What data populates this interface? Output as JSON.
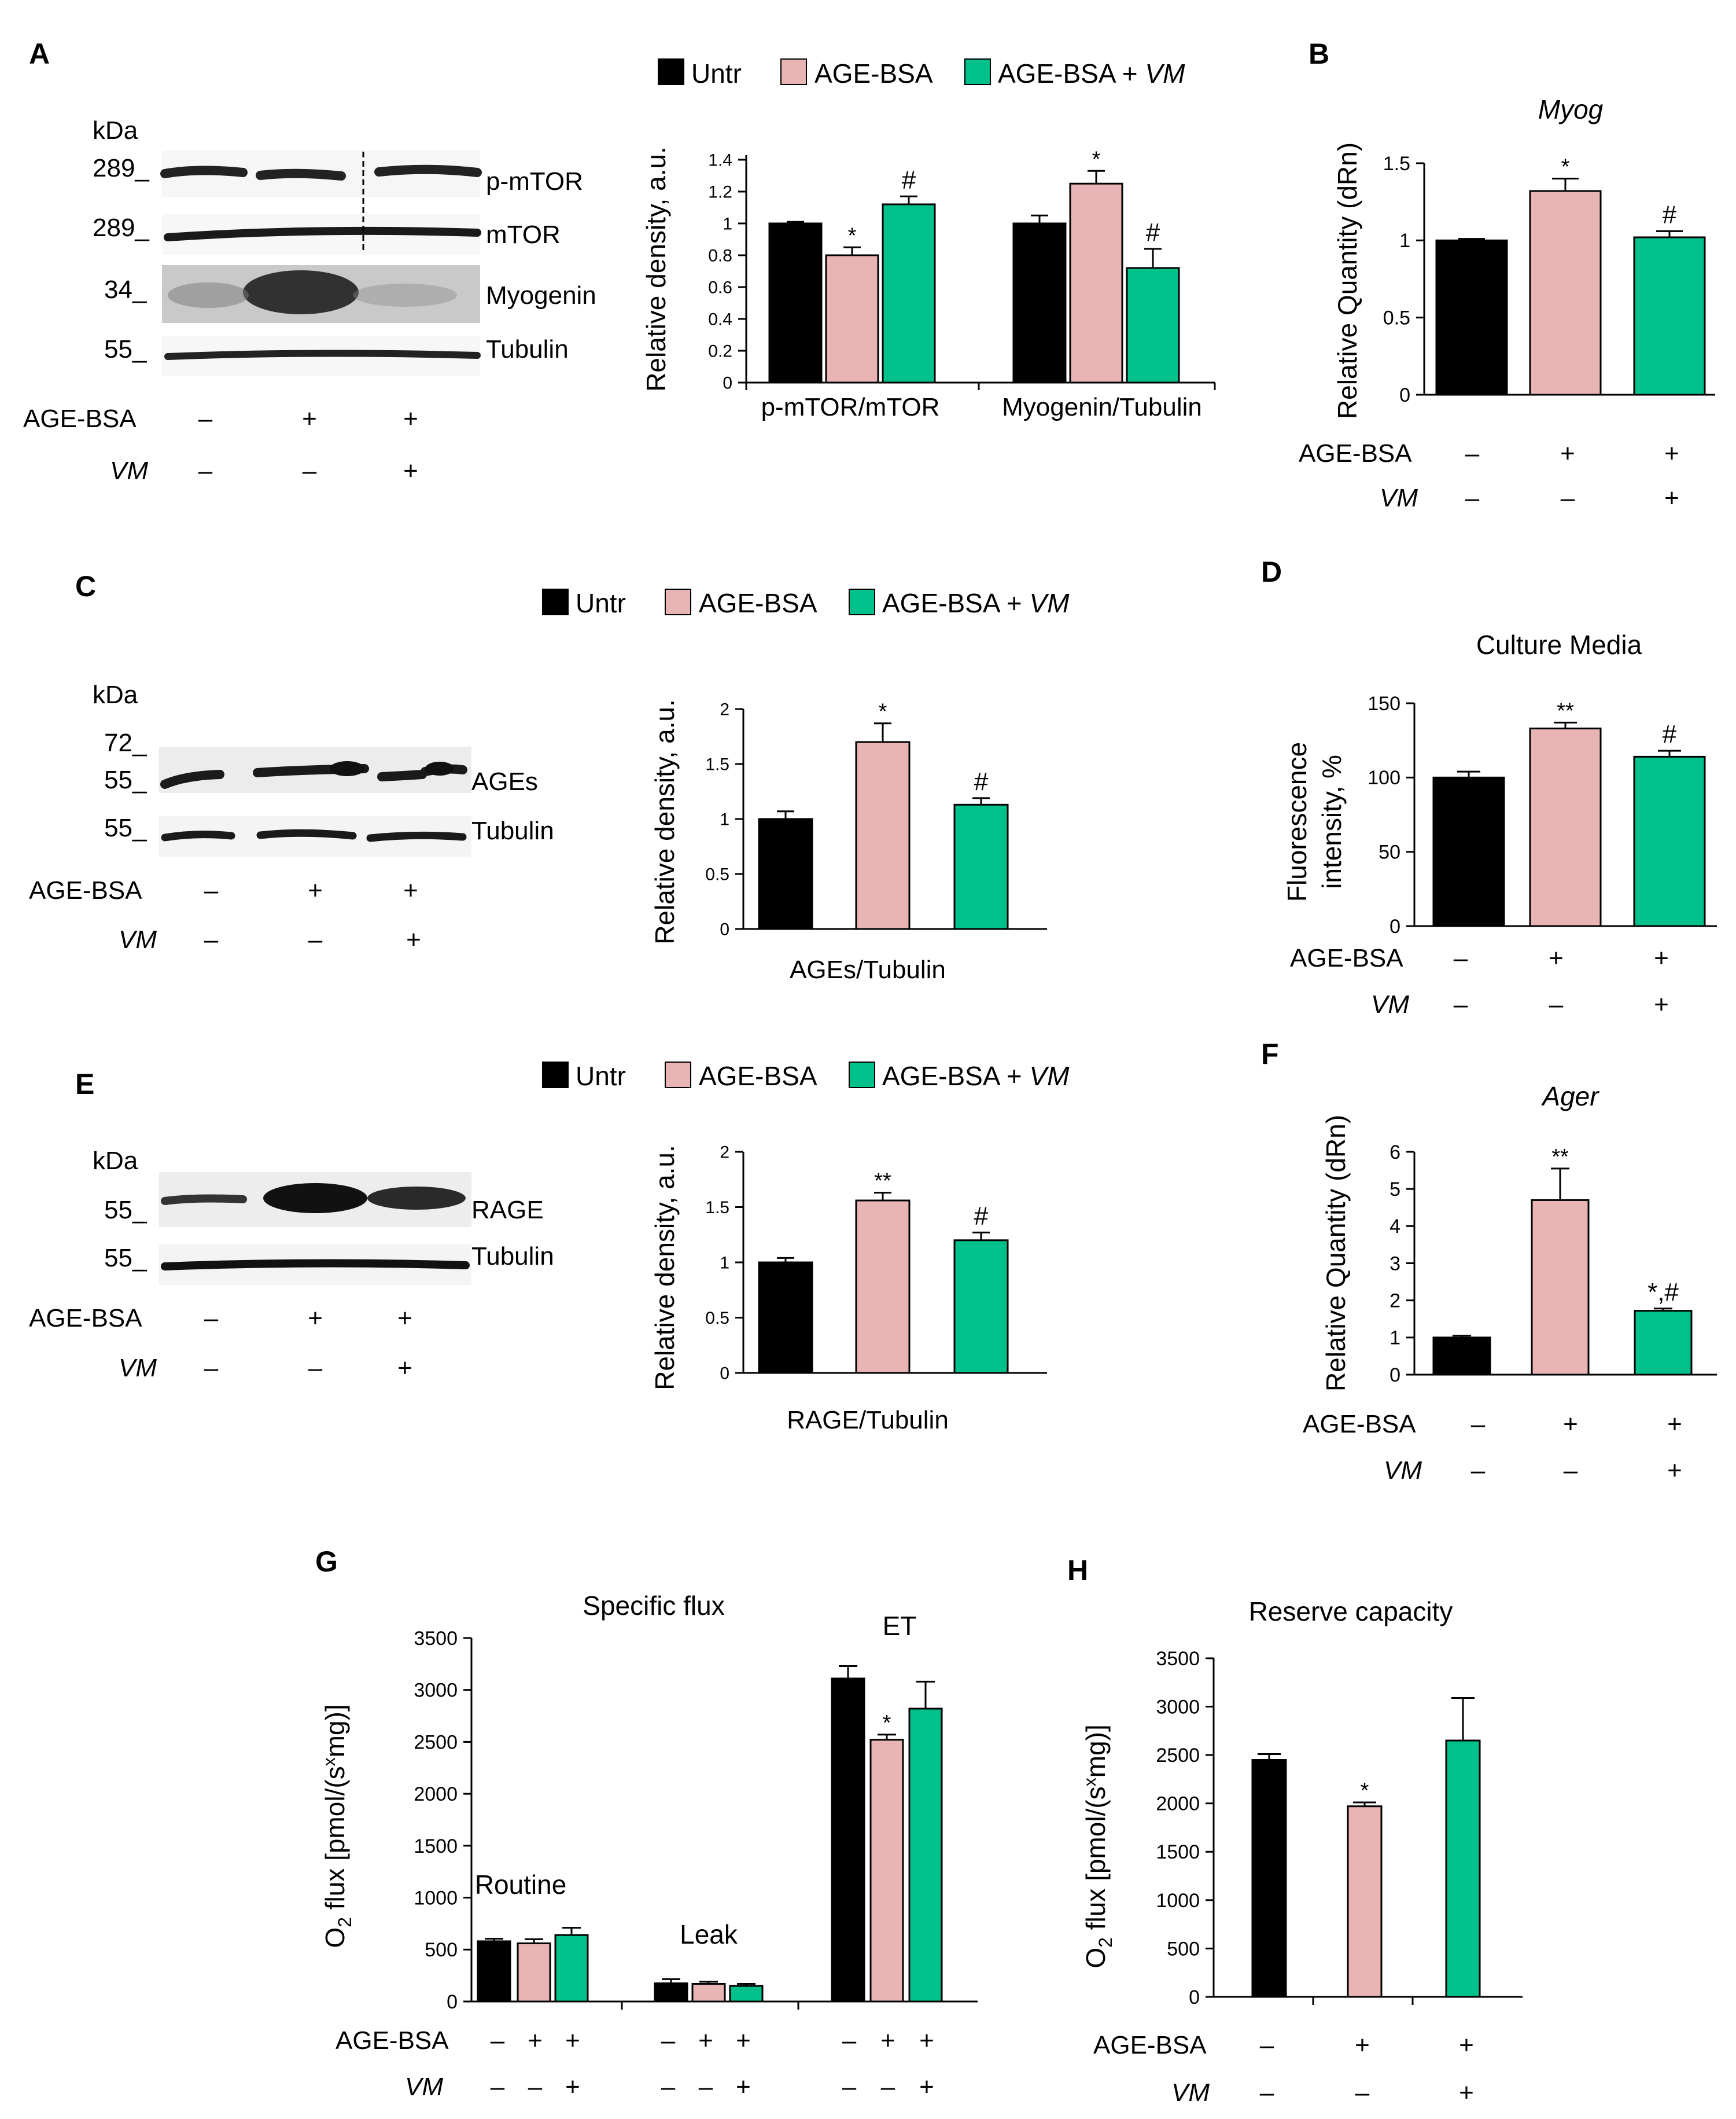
{
  "colors": {
    "untr": "#000000",
    "age": "#E8B4B4",
    "vm": "#00C08B"
  },
  "legend": {
    "items": [
      "Untr",
      "AGE-BSA",
      "AGE-BSA + ",
      "VM"
    ]
  },
  "treat": {
    "age": "AGE-BSA",
    "vm": "VM",
    "minus": "–",
    "plus": "+"
  },
  "panels": {
    "A": {
      "letter": "A",
      "blot": {
        "kda": "kDa",
        "markers": [
          "289_",
          "289_",
          "34_",
          "55_"
        ],
        "proteins": [
          "p-mTOR",
          "mTOR",
          "Myogenin",
          "Tubulin"
        ]
      },
      "age_row": [
        "–",
        "+",
        "+"
      ],
      "vm_row": [
        "–",
        "–",
        "+"
      ]
    },
    "B": {
      "letter": "B",
      "age_row": [
        "–",
        "+",
        "+"
      ],
      "vm_row": [
        "–",
        "–",
        "+"
      ]
    },
    "C": {
      "letter": "C",
      "blot": {
        "kda": "kDa",
        "markers": [
          "72_",
          "55_",
          "55_"
        ],
        "proteins": [
          "AGEs",
          "Tubulin"
        ]
      },
      "age_row": [
        "–",
        "+",
        "+"
      ],
      "vm_row": [
        "–",
        "–",
        "+"
      ]
    },
    "D": {
      "letter": "D",
      "age_row": [
        "–",
        "+",
        "+"
      ],
      "vm_row": [
        "–",
        "–",
        "+"
      ]
    },
    "E": {
      "letter": "E",
      "blot": {
        "kda": "kDa",
        "markers": [
          "55_",
          "55_"
        ],
        "proteins": [
          "RAGE",
          "Tubulin"
        ]
      },
      "age_row": [
        "–",
        "+",
        "+"
      ],
      "vm_row": [
        "–",
        "–",
        "+"
      ]
    },
    "F": {
      "letter": "F",
      "age_row": [
        "–",
        "+",
        "+"
      ],
      "vm_row": [
        "–",
        "–",
        "+"
      ]
    },
    "G": {
      "letter": "G",
      "age_row": [
        "–",
        "+",
        "+",
        "–",
        "+",
        "+",
        "–",
        "+",
        "+"
      ],
      "vm_row": [
        "–",
        "–",
        "+",
        "–",
        "–",
        "+",
        "–",
        "–",
        "+"
      ]
    },
    "H": {
      "letter": "H",
      "age_row": [
        "–",
        "+",
        "+"
      ],
      "vm_row": [
        "–",
        "–",
        "+"
      ]
    }
  },
  "chart_data": [
    {
      "id": "A",
      "type": "bar",
      "title": "",
      "ylabel": "Relative  density, a.u.",
      "categories": [
        "p-mTOR/mTOR",
        "Myogenin/Tubulin"
      ],
      "ylim": [
        0,
        1.4
      ],
      "yticks": [
        "0",
        "0.2",
        "0.4",
        "0.6",
        "0.8",
        "1",
        "1.2",
        "1.4"
      ],
      "series": [
        {
          "name": "Untr",
          "values": [
            1.0,
            1.0
          ],
          "err": [
            0.01,
            0.05
          ],
          "marks": [
            "",
            ""
          ]
        },
        {
          "name": "AGE-BSA",
          "values": [
            0.8,
            1.25
          ],
          "err": [
            0.05,
            0.08
          ],
          "marks": [
            "*",
            "*"
          ]
        },
        {
          "name": "AGE-BSA + VM",
          "values": [
            1.12,
            0.72
          ],
          "err": [
            0.05,
            0.12
          ],
          "marks": [
            "#",
            "#"
          ]
        }
      ]
    },
    {
      "id": "B",
      "type": "bar",
      "title": "Myog",
      "ylabel": "Relative  Quantity  (dRn)",
      "categories": [
        "Untr",
        "AGE-BSA",
        "AGE-BSA + VM"
      ],
      "ylim": [
        0,
        1.5
      ],
      "yticks": [
        "0",
        "0.5",
        "1",
        "1.5"
      ],
      "values": [
        1.0,
        1.32,
        1.02
      ],
      "err": [
        0.01,
        0.08,
        0.04
      ],
      "marks": [
        "",
        "*",
        "#"
      ]
    },
    {
      "id": "C",
      "type": "bar",
      "title": "",
      "ylabel": "Relative  density, a.u.",
      "xlabel": "AGEs/Tubulin",
      "categories": [
        "Untr",
        "AGE-BSA",
        "AGE-BSA + VM"
      ],
      "ylim": [
        0,
        2
      ],
      "yticks": [
        "0",
        "0.5",
        "1",
        "1.5",
        "2"
      ],
      "values": [
        1.0,
        1.7,
        1.13
      ],
      "err": [
        0.07,
        0.17,
        0.06
      ],
      "marks": [
        "",
        "*",
        "#"
      ]
    },
    {
      "id": "D",
      "type": "bar",
      "title": "Culture Media",
      "ylabel": [
        "Fluorescence",
        "intensity, %"
      ],
      "categories": [
        "Untr",
        "AGE-BSA",
        "AGE-BSA + VM"
      ],
      "ylim": [
        0,
        150
      ],
      "yticks": [
        "0",
        "50",
        "100",
        "150"
      ],
      "values": [
        100,
        133,
        114
      ],
      "err": [
        4,
        4,
        4
      ],
      "marks": [
        "",
        "**",
        "#"
      ]
    },
    {
      "id": "E",
      "type": "bar",
      "title": "",
      "ylabel": "Relative  density, a.u.",
      "xlabel": "RAGE/Tubulin",
      "categories": [
        "Untr",
        "AGE-BSA",
        "AGE-BSA + VM"
      ],
      "ylim": [
        0,
        2
      ],
      "yticks": [
        "0",
        "0.5",
        "1",
        "1.5",
        "2"
      ],
      "values": [
        1.0,
        1.56,
        1.2
      ],
      "err": [
        0.04,
        0.07,
        0.07
      ],
      "marks": [
        "",
        "**",
        "#"
      ]
    },
    {
      "id": "F",
      "type": "bar",
      "title": "Ager",
      "ylabel": "Relative  Quantity  (dRn)",
      "categories": [
        "Untr",
        "AGE-BSA",
        "AGE-BSA + VM"
      ],
      "ylim": [
        0,
        6
      ],
      "yticks": [
        "0",
        "1",
        "2",
        "3",
        "4",
        "5",
        "6"
      ],
      "values": [
        1.0,
        4.7,
        1.72
      ],
      "err": [
        0.05,
        0.85,
        0.06
      ],
      "marks": [
        "",
        "**",
        "*,#"
      ]
    },
    {
      "id": "G",
      "type": "bar",
      "title": "Specific flux",
      "ylabel": "O2 flux [pmol/(s×mg)]",
      "categories": [
        "Routine",
        "Leak",
        "ET"
      ],
      "ylim": [
        0,
        3500
      ],
      "yticks": [
        "0",
        "500",
        "1000",
        "1500",
        "2000",
        "2500",
        "3000",
        "3500"
      ],
      "series": [
        {
          "name": "Untr",
          "values": [
            580,
            175,
            3110
          ],
          "err": [
            25,
            40,
            120
          ],
          "marks": [
            "",
            "",
            ""
          ]
        },
        {
          "name": "AGE-BSA",
          "values": [
            560,
            170,
            2520
          ],
          "err": [
            40,
            20,
            50
          ],
          "marks": [
            "",
            "",
            "*"
          ]
        },
        {
          "name": "AGE-BSA + VM",
          "values": [
            640,
            150,
            2820
          ],
          "err": [
            70,
            20,
            260
          ],
          "marks": [
            "",
            "",
            ""
          ]
        }
      ]
    },
    {
      "id": "H",
      "type": "bar",
      "title": "Reserve  capacity",
      "ylabel": "O2 flux [pmol/(s×mg)]",
      "categories": [
        "Untr",
        "AGE-BSA",
        "AGE-BSA + VM"
      ],
      "ylim": [
        0,
        3500
      ],
      "yticks": [
        "0",
        "500",
        "1000",
        "1500",
        "2000",
        "2500",
        "3000",
        "3500"
      ],
      "values": [
        2450,
        1970,
        2650
      ],
      "err": [
        60,
        40,
        440
      ],
      "marks": [
        "",
        "*",
        ""
      ]
    }
  ]
}
